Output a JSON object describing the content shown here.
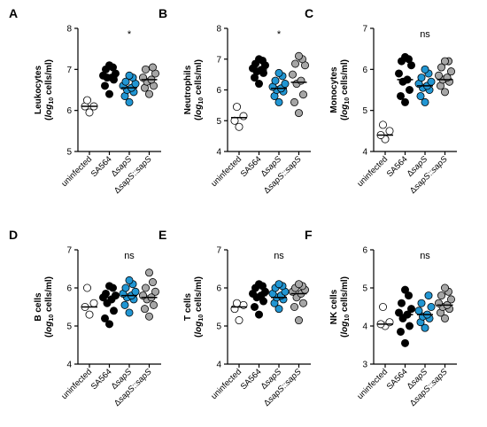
{
  "categories": [
    "uninfected",
    "SA564",
    "ΔsapS",
    "ΔsapS::sapS"
  ],
  "category_parts": [
    [
      {
        "t": "uninfected",
        "i": false
      }
    ],
    [
      {
        "t": "SA564",
        "i": false
      }
    ],
    [
      {
        "t": "Δ",
        "i": false
      },
      {
        "t": "sapS",
        "i": true
      }
    ],
    [
      {
        "t": "Δ",
        "i": false
      },
      {
        "t": "sapS",
        "i": true
      },
      {
        "t": "::",
        "i": false
      },
      {
        "t": "sapS",
        "i": true
      }
    ]
  ],
  "colors": {
    "uninfected": "#ffffff",
    "SA564": "#000000",
    "dsapS": "#2196d3",
    "complemented": "#a6a6a6"
  },
  "unit_text": {
    "open": "(",
    "log": "log",
    "sub": "10",
    "rest": " cells/ml)"
  },
  "chart_data": [
    {
      "type": "scatter",
      "panel": "A",
      "ylabel": "Leukocytes",
      "ylim": [
        5,
        8
      ],
      "yticks": [
        5,
        6,
        7,
        8
      ],
      "significance": "*",
      "groups": [
        {
          "values": [
            5.95,
            6.1,
            6.1,
            6.25
          ],
          "median": 6.1
        },
        {
          "values": [
            6.4,
            6.6,
            6.75,
            6.8,
            6.8,
            6.85,
            6.9,
            7.0,
            7.05,
            7.1
          ],
          "median": 6.8
        },
        {
          "values": [
            6.2,
            6.35,
            6.45,
            6.5,
            6.55,
            6.6,
            6.65,
            6.7,
            6.8,
            6.85
          ],
          "median": 6.55
        },
        {
          "values": [
            6.4,
            6.55,
            6.6,
            6.7,
            6.75,
            6.8,
            6.9,
            7.0,
            7.05
          ],
          "median": 6.75
        }
      ]
    },
    {
      "type": "scatter",
      "panel": "B",
      "ylabel": "Neutrophils",
      "ylim": [
        4,
        8
      ],
      "yticks": [
        4,
        5,
        6,
        7,
        8
      ],
      "significance": "*",
      "groups": [
        {
          "values": [
            4.8,
            5.0,
            5.15,
            5.45
          ],
          "median": 5.1
        },
        {
          "values": [
            6.2,
            6.4,
            6.55,
            6.6,
            6.65,
            6.7,
            6.8,
            6.85,
            6.95,
            7.0
          ],
          "median": 6.65
        },
        {
          "values": [
            5.6,
            5.8,
            5.95,
            6.0,
            6.05,
            6.1,
            6.2,
            6.3,
            6.45,
            6.55
          ],
          "median": 6.05
        },
        {
          "values": [
            5.25,
            5.6,
            5.85,
            6.2,
            6.3,
            6.5,
            6.8,
            6.85,
            7.0,
            7.1
          ],
          "median": 6.25
        }
      ]
    },
    {
      "type": "scatter",
      "panel": "C",
      "ylabel": "Monocytes",
      "ylim": [
        4,
        7
      ],
      "yticks": [
        4,
        5,
        6,
        7
      ],
      "significance": "ns",
      "groups": [
        {
          "values": [
            4.3,
            4.4,
            4.5,
            4.65
          ],
          "median": 4.4
        },
        {
          "values": [
            5.2,
            5.35,
            5.5,
            5.7,
            5.75,
            5.9,
            6.1,
            6.2,
            6.25,
            6.3
          ],
          "median": 5.75
        },
        {
          "values": [
            5.2,
            5.35,
            5.5,
            5.55,
            5.6,
            5.65,
            5.7,
            5.8,
            5.9,
            6.0
          ],
          "median": 5.6
        },
        {
          "values": [
            5.45,
            5.6,
            5.7,
            5.75,
            5.8,
            5.85,
            5.95,
            6.05,
            6.2,
            6.2
          ],
          "median": 5.75
        }
      ]
    },
    {
      "type": "scatter",
      "panel": "D",
      "ylabel": "B cells",
      "ylim": [
        4,
        7
      ],
      "yticks": [
        4,
        5,
        6,
        7
      ],
      "significance": "ns",
      "groups": [
        {
          "values": [
            5.3,
            5.5,
            5.6,
            6.0
          ],
          "median": 5.5
        },
        {
          "values": [
            5.05,
            5.2,
            5.4,
            5.6,
            5.7,
            5.75,
            5.8,
            5.85,
            6.0,
            6.05
          ],
          "median": 5.75
        },
        {
          "values": [
            5.35,
            5.55,
            5.7,
            5.75,
            5.8,
            5.85,
            5.9,
            6.0,
            6.1,
            6.2
          ],
          "median": 5.8
        },
        {
          "values": [
            5.25,
            5.45,
            5.55,
            5.7,
            5.75,
            5.8,
            5.9,
            6.0,
            6.15,
            6.4
          ],
          "median": 5.75
        }
      ]
    },
    {
      "type": "scatter",
      "panel": "E",
      "ylabel": "T cells",
      "ylim": [
        4,
        7
      ],
      "yticks": [
        4,
        5,
        6,
        7
      ],
      "significance": "ns",
      "groups": [
        {
          "values": [
            5.15,
            5.45,
            5.55,
            5.6
          ],
          "median": 5.5
        },
        {
          "values": [
            5.3,
            5.5,
            5.65,
            5.75,
            5.8,
            5.85,
            5.9,
            6.0,
            6.05,
            6.1
          ],
          "median": 5.8
        },
        {
          "values": [
            5.45,
            5.6,
            5.7,
            5.75,
            5.8,
            5.85,
            5.9,
            6.0,
            6.05,
            6.1
          ],
          "median": 5.75
        },
        {
          "values": [
            5.15,
            5.5,
            5.6,
            5.75,
            5.85,
            5.9,
            5.95,
            6.0,
            6.05,
            6.1
          ],
          "median": 5.85
        }
      ]
    },
    {
      "type": "scatter",
      "panel": "F",
      "ylabel": "NK cells",
      "ylim": [
        3,
        6
      ],
      "yticks": [
        3,
        4,
        5,
        6
      ],
      "significance": "ns",
      "groups": [
        {
          "values": [
            4.0,
            4.05,
            4.1,
            4.5
          ],
          "median": 4.05
        },
        {
          "values": [
            3.55,
            3.85,
            4.0,
            4.2,
            4.3,
            4.35,
            4.45,
            4.6,
            4.8,
            4.95
          ],
          "median": 4.3
        },
        {
          "values": [
            3.95,
            4.1,
            4.2,
            4.25,
            4.3,
            4.4,
            4.5,
            4.6,
            4.8
          ],
          "median": 4.3
        },
        {
          "values": [
            4.2,
            4.35,
            4.45,
            4.5,
            4.55,
            4.6,
            4.7,
            4.8,
            4.9,
            5.0
          ],
          "median": 4.55
        }
      ]
    }
  ]
}
